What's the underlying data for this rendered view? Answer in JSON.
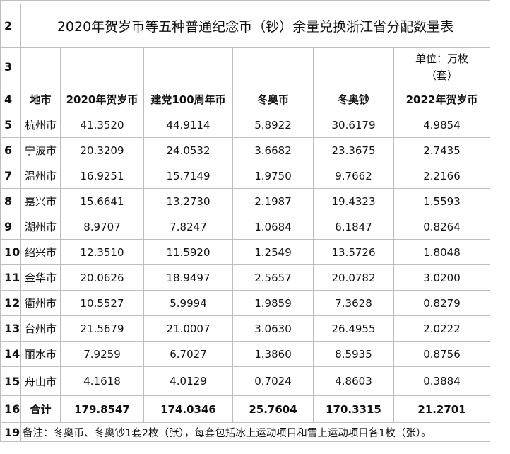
{
  "title": "2020年贺岁币等五种普通纪念币（钞）余量兑换浙江省分配数量表",
  "unit_line1": "单位：万枚",
  "unit_line2": "（套）",
  "row_numbers": [
    "2",
    "3",
    "4",
    "5",
    "6",
    "7",
    "8",
    "9",
    "10",
    "11",
    "12",
    "13",
    "14",
    "15",
    "16",
    "19"
  ],
  "headers": [
    "地市",
    "2020年贺岁币",
    "建党100周年币",
    "冬奥币",
    "冬奥钞",
    "2022年贺岁币"
  ],
  "rows": [
    [
      "杭州市",
      "41.3520",
      "44.9114",
      "5.8922",
      "30.6179",
      "4.9854"
    ],
    [
      "宁波市",
      "20.3209",
      "24.0532",
      "3.6682",
      "23.3675",
      "2.7435"
    ],
    [
      "温州市",
      "16.9251",
      "15.7149",
      "1.9750",
      "9.7662",
      "2.2166"
    ],
    [
      "嘉兴市",
      "15.6641",
      "13.2730",
      "2.1987",
      "19.4323",
      "1.5593"
    ],
    [
      "湖州市",
      "8.9707",
      "7.8247",
      "1.0684",
      "6.1847",
      "0.8264"
    ],
    [
      "绍兴市",
      "12.3510",
      "11.5920",
      "1.2549",
      "13.5726",
      "1.8048"
    ],
    [
      "金华市",
      "20.0626",
      "18.9497",
      "2.5657",
      "20.0782",
      "3.0200"
    ],
    [
      "衢州市",
      "10.5527",
      "5.9994",
      "1.9859",
      "7.3628",
      "0.8279"
    ],
    [
      "台州市",
      "21.5679",
      "21.0007",
      "3.0630",
      "26.4955",
      "2.0222"
    ],
    [
      "丽水市",
      "7.9259",
      "6.7027",
      "1.3860",
      "8.5935",
      "0.8756"
    ],
    [
      "舟山市",
      "4.1618",
      "4.0129",
      "0.7024",
      "4.8603",
      "0.3884"
    ]
  ],
  "total": [
    "合计",
    "179.8547",
    "174.0346",
    "25.7604",
    "170.3315",
    "21.2701"
  ],
  "note": "备注：冬奥币、冬奥钞1套2枚（张），每套包括冰上运动项目和雪上运动项目各1枚（张）。"
}
